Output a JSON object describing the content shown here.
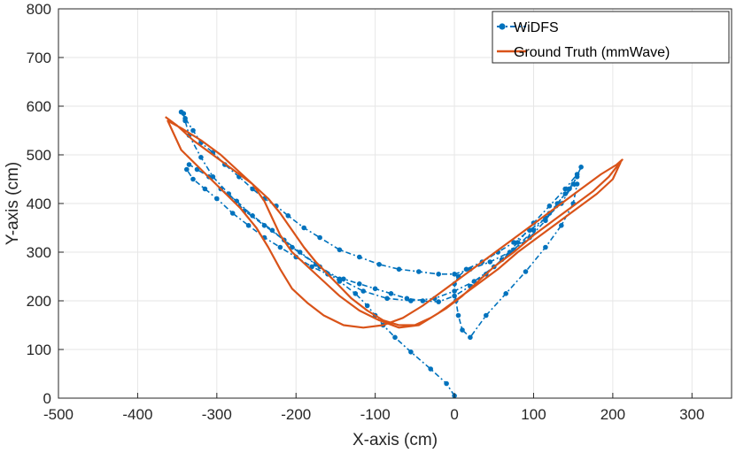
{
  "chart_data": {
    "type": "line",
    "title": "",
    "xlabel": "X-axis (cm)",
    "ylabel": "Y-axis (cm)",
    "xlim": [
      -500,
      350
    ],
    "ylim": [
      0,
      800
    ],
    "xticks": [
      -500,
      -400,
      -300,
      -200,
      -100,
      0,
      100,
      200,
      300
    ],
    "yticks": [
      0,
      100,
      200,
      300,
      400,
      500,
      600,
      700,
      800
    ],
    "grid": true,
    "legend_position": "top-right",
    "series": [
      {
        "name": "WiDFS",
        "color": "#0072BD",
        "style": "dash-dot with circle markers",
        "x": [
          0,
          -10,
          -30,
          -55,
          -75,
          -90,
          -100,
          -110,
          -125,
          -145,
          -170,
          -195,
          -215,
          -240,
          -265,
          -285,
          -305,
          -320,
          -335,
          -340,
          -342,
          -345,
          -340,
          -330,
          -320,
          -305,
          -290,
          -272,
          -255,
          -240,
          -225,
          -210,
          -190,
          -170,
          -145,
          -120,
          -95,
          -70,
          -45,
          -20,
          0,
          20,
          45,
          70,
          95,
          115,
          130,
          145,
          155,
          160,
          150,
          135,
          115,
          95,
          75,
          55,
          35,
          15,
          5,
          0,
          2,
          5,
          10,
          20,
          40,
          65,
          90,
          115,
          135,
          150,
          155,
          140,
          120,
          100,
          75,
          50,
          25,
          0,
          -25,
          -55,
          -85,
          -115,
          -145,
          -175,
          -205,
          -230,
          -255,
          -275,
          -295,
          -310,
          -325,
          -335,
          -338,
          -330,
          -315,
          -300,
          -280,
          -260,
          -240,
          -220,
          -200,
          -180,
          -160,
          -140,
          -120,
          -100,
          -80,
          -60,
          -40,
          -20,
          0,
          20,
          40,
          60,
          80,
          100,
          120,
          140,
          155
        ],
        "y": [
          5,
          30,
          60,
          95,
          125,
          150,
          170,
          190,
          215,
          240,
          270,
          300,
          325,
          355,
          385,
          420,
          455,
          495,
          540,
          570,
          585,
          588,
          575,
          550,
          525,
          505,
          480,
          455,
          430,
          410,
          395,
          375,
          350,
          330,
          305,
          290,
          275,
          265,
          260,
          255,
          255,
          265,
          280,
          300,
          330,
          365,
          400,
          430,
          455,
          475,
          440,
          400,
          370,
          345,
          320,
          300,
          280,
          265,
          250,
          235,
          200,
          170,
          140,
          125,
          170,
          215,
          260,
          310,
          355,
          400,
          440,
          420,
          380,
          345,
          305,
          270,
          240,
          220,
          205,
          200,
          205,
          220,
          245,
          275,
          310,
          345,
          375,
          405,
          430,
          455,
          470,
          480,
          470,
          450,
          430,
          410,
          380,
          355,
          330,
          310,
          290,
          270,
          255,
          245,
          235,
          225,
          215,
          205,
          200,
          198,
          210,
          230,
          255,
          285,
          320,
          360,
          395,
          430,
          460
        ]
      },
      {
        "name": "Ground Truth (mmWave)",
        "color": "#D95319",
        "style": "solid line",
        "x": [
          -365,
          -350,
          -330,
          -305,
          -280,
          -255,
          -235,
          -220,
          -205,
          -190,
          -175,
          -160,
          -145,
          -130,
          -110,
          -90,
          -70,
          -50,
          -30,
          -10,
          10,
          30,
          50,
          75,
          100,
          125,
          150,
          175,
          195,
          212,
          205,
          185,
          160,
          135,
          110,
          85,
          60,
          35,
          10,
          -15,
          -40,
          -65,
          -90,
          -115,
          -140,
          -165,
          -185,
          -205,
          -220,
          -235,
          -250,
          -270,
          -295,
          -320,
          -345,
          -362,
          -345,
          -320,
          -295,
          -275,
          -255,
          -240,
          -230,
          -220,
          -205,
          -185,
          -165,
          -145,
          -120,
          -95,
          -70,
          -45,
          -20,
          5,
          30,
          55,
          80,
          105,
          130,
          155,
          180,
          200,
          210
        ],
        "y": [
          578,
          560,
          530,
          500,
          470,
          440,
          410,
          380,
          345,
          310,
          280,
          255,
          230,
          205,
          180,
          160,
          150,
          150,
          165,
          185,
          210,
          240,
          270,
          300,
          335,
          365,
          395,
          425,
          455,
          490,
          480,
          460,
          430,
          400,
          370,
          340,
          310,
          280,
          250,
          220,
          190,
          165,
          150,
          145,
          150,
          170,
          195,
          225,
          265,
          310,
          350,
          390,
          430,
          470,
          510,
          570,
          555,
          530,
          500,
          470,
          440,
          405,
          370,
          335,
          300,
          270,
          240,
          210,
          180,
          160,
          145,
          150,
          175,
          205,
          235,
          265,
          300,
          330,
          360,
          390,
          420,
          450,
          485
        ]
      }
    ]
  }
}
